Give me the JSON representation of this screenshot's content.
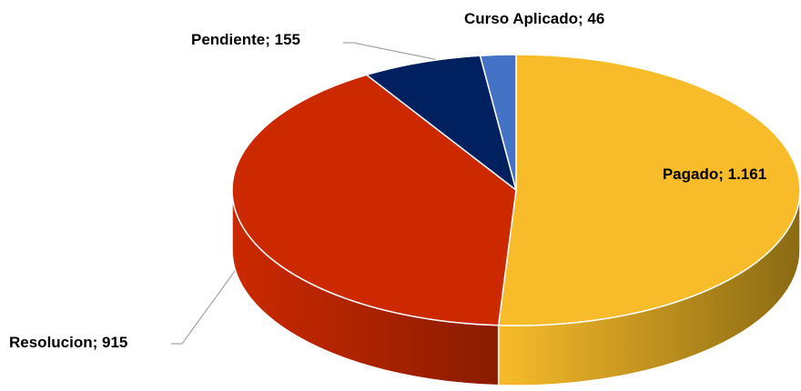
{
  "chart_data": {
    "type": "pie",
    "categories": [
      "Pagado",
      "Resolucion",
      "Pendiente",
      "Curso Aplicado"
    ],
    "values": [
      1161,
      915,
      155,
      46
    ],
    "value_labels": [
      "1.161",
      "915",
      "155",
      "46"
    ],
    "label_separator": "; ",
    "colors": [
      "#f8bb2a",
      "#cc2900",
      "#002060",
      "#4472c4"
    ],
    "side_colors": [
      "#8a6a14",
      "#8a1c00",
      "#001338",
      "#2a4a80"
    ]
  }
}
